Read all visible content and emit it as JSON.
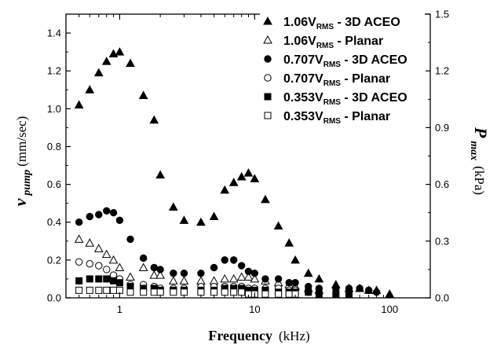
{
  "chart_data": {
    "type": "scatter",
    "x_scale": "log",
    "xlim": [
      0.4,
      200
    ],
    "ylim": [
      0,
      1.5
    ],
    "y2lim": [
      0,
      1.5
    ],
    "x_ticks": [
      "1",
      "10",
      "100"
    ],
    "y_ticks": [
      "0.0",
      "0.2",
      "0.4",
      "0.6",
      "0.8",
      "1.0",
      "1.2",
      "1.4"
    ],
    "y2_ticks": [
      "0.0",
      "0.3",
      "0.6",
      "0.9",
      "1.2",
      "1.5"
    ],
    "xlabel": {
      "main": "Frequency",
      "unit": "(kHz)"
    },
    "ylabel": {
      "main": "v",
      "sub": "pump",
      "unit": "(mm/sec)"
    },
    "y2label": {
      "main": "P",
      "sub": "max",
      "unit": "(kPa)"
    },
    "legend_position": "top-right",
    "series": [
      {
        "name": "1.06VRMS - 3D ACEO",
        "name_parts": [
          "1.06V",
          "RMS",
          " - 3D ACEO"
        ],
        "marker": "triangle",
        "fill": "filled",
        "x": [
          0.5,
          0.6,
          0.7,
          0.8,
          0.9,
          1.0,
          1.2,
          1.5,
          1.8,
          2.0,
          2.5,
          3.0,
          4.0,
          5.0,
          6.0,
          7.0,
          8.0,
          9.0,
          10.0,
          12.0,
          15.0,
          18.0,
          20.0,
          25.0,
          30.0,
          40.0,
          50.0,
          60.0,
          70.0,
          80.0,
          100.0
        ],
        "y": [
          1.02,
          1.1,
          1.19,
          1.25,
          1.29,
          1.3,
          1.24,
          1.07,
          0.94,
          0.65,
          0.48,
          0.41,
          0.4,
          0.43,
          0.57,
          0.61,
          0.64,
          0.66,
          0.63,
          0.52,
          0.38,
          0.29,
          0.2,
          0.13,
          0.1,
          0.07,
          0.05,
          0.05,
          0.04,
          0.04,
          0.02
        ]
      },
      {
        "name": "1.06VRMS - Planar",
        "name_parts": [
          "1.06V",
          "RMS",
          " - Planar"
        ],
        "marker": "triangle",
        "fill": "open",
        "x": [
          0.5,
          0.6,
          0.7,
          0.8,
          0.9,
          1.0,
          1.2,
          1.5,
          1.8,
          2.0,
          2.5,
          3.0,
          4.0,
          5.0,
          6.0,
          7.0,
          8.0,
          9.0,
          10.0,
          12.0,
          15.0,
          18.0,
          20.0,
          25.0,
          30.0
        ],
        "y": [
          0.31,
          0.29,
          0.26,
          0.23,
          0.2,
          0.16,
          0.11,
          0.16,
          0.12,
          0.12,
          0.09,
          0.09,
          0.09,
          0.09,
          0.1,
          0.1,
          0.11,
          0.11,
          0.1,
          0.09,
          0.08,
          0.07,
          0.06,
          0.05,
          0.04
        ]
      },
      {
        "name": "0.707VRMS - 3D ACEO",
        "name_parts": [
          "0.707V",
          "RMS",
          " - 3D ACEO"
        ],
        "marker": "circle",
        "fill": "filled",
        "x": [
          0.5,
          0.6,
          0.7,
          0.8,
          0.9,
          1.0,
          1.2,
          1.5,
          1.8,
          2.0,
          2.5,
          3.0,
          4.0,
          5.0,
          6.0,
          7.0,
          8.0,
          9.0,
          10.0,
          12.0,
          15.0,
          18.0,
          20.0,
          25.0,
          30.0,
          40.0,
          50.0,
          60.0,
          70.0,
          80.0
        ],
        "y": [
          0.4,
          0.43,
          0.44,
          0.46,
          0.45,
          0.41,
          0.31,
          0.21,
          0.16,
          0.15,
          0.13,
          0.13,
          0.13,
          0.16,
          0.2,
          0.2,
          0.17,
          0.14,
          0.13,
          0.1,
          0.1,
          0.08,
          0.08,
          0.06,
          0.05,
          0.05,
          0.05,
          0.05,
          0.04,
          0.03
        ]
      },
      {
        "name": "0.707VRMS - Planar",
        "name_parts": [
          "0.707V",
          "RMS",
          " - Planar"
        ],
        "marker": "circle",
        "fill": "open",
        "x": [
          0.5,
          0.6,
          0.7,
          0.8,
          0.9,
          1.0,
          1.2,
          1.5,
          1.8,
          2.0,
          2.5,
          3.0,
          4.0,
          5.0,
          6.0,
          7.0,
          8.0,
          9.0,
          10.0,
          12.0,
          15.0,
          18.0,
          20.0,
          25.0
        ],
        "y": [
          0.19,
          0.18,
          0.17,
          0.15,
          0.12,
          0.1,
          0.07,
          0.07,
          0.06,
          0.05,
          0.05,
          0.05,
          0.06,
          0.06,
          0.06,
          0.06,
          0.06,
          0.05,
          0.05,
          0.05,
          0.05,
          0.04,
          0.04,
          0.03
        ]
      },
      {
        "name": "0.353VRMS - 3D ACEO",
        "name_parts": [
          "0.353V",
          "RMS",
          " - 3D ACEO"
        ],
        "marker": "square",
        "fill": "filled",
        "x": [
          0.5,
          0.6,
          0.7,
          0.8,
          0.9,
          1.0,
          1.2,
          1.5,
          1.8,
          2.0,
          2.5,
          3.0,
          4.0,
          5.0,
          6.0,
          7.0,
          8.0,
          9.0,
          10.0,
          12.0,
          15.0,
          18.0,
          20.0,
          25.0,
          30.0,
          40.0,
          50.0
        ],
        "y": [
          0.09,
          0.1,
          0.1,
          0.1,
          0.09,
          0.08,
          0.06,
          0.05,
          0.05,
          0.04,
          0.04,
          0.04,
          0.04,
          0.04,
          0.05,
          0.05,
          0.05,
          0.04,
          0.04,
          0.04,
          0.03,
          0.03,
          0.03,
          0.03,
          0.02,
          0.02,
          0.02
        ]
      },
      {
        "name": "0.353VRMS - Planar",
        "name_parts": [
          "0.353V",
          "RMS",
          " - Planar"
        ],
        "marker": "square",
        "fill": "open",
        "x": [
          0.5,
          0.6,
          0.7,
          0.8,
          0.9,
          1.0,
          1.2,
          1.5,
          1.8,
          2.0,
          2.5,
          3.0,
          4.0,
          5.0,
          6.0,
          7.0,
          8.0,
          9.0,
          10.0,
          12.0,
          15.0,
          18.0,
          20.0
        ],
        "y": [
          0.04,
          0.04,
          0.04,
          0.04,
          0.04,
          0.04,
          0.03,
          0.03,
          0.03,
          0.03,
          0.03,
          0.03,
          0.03,
          0.03,
          0.03,
          0.03,
          0.03,
          0.02,
          0.02,
          0.02,
          0.02,
          0.02,
          0.02
        ]
      }
    ]
  }
}
